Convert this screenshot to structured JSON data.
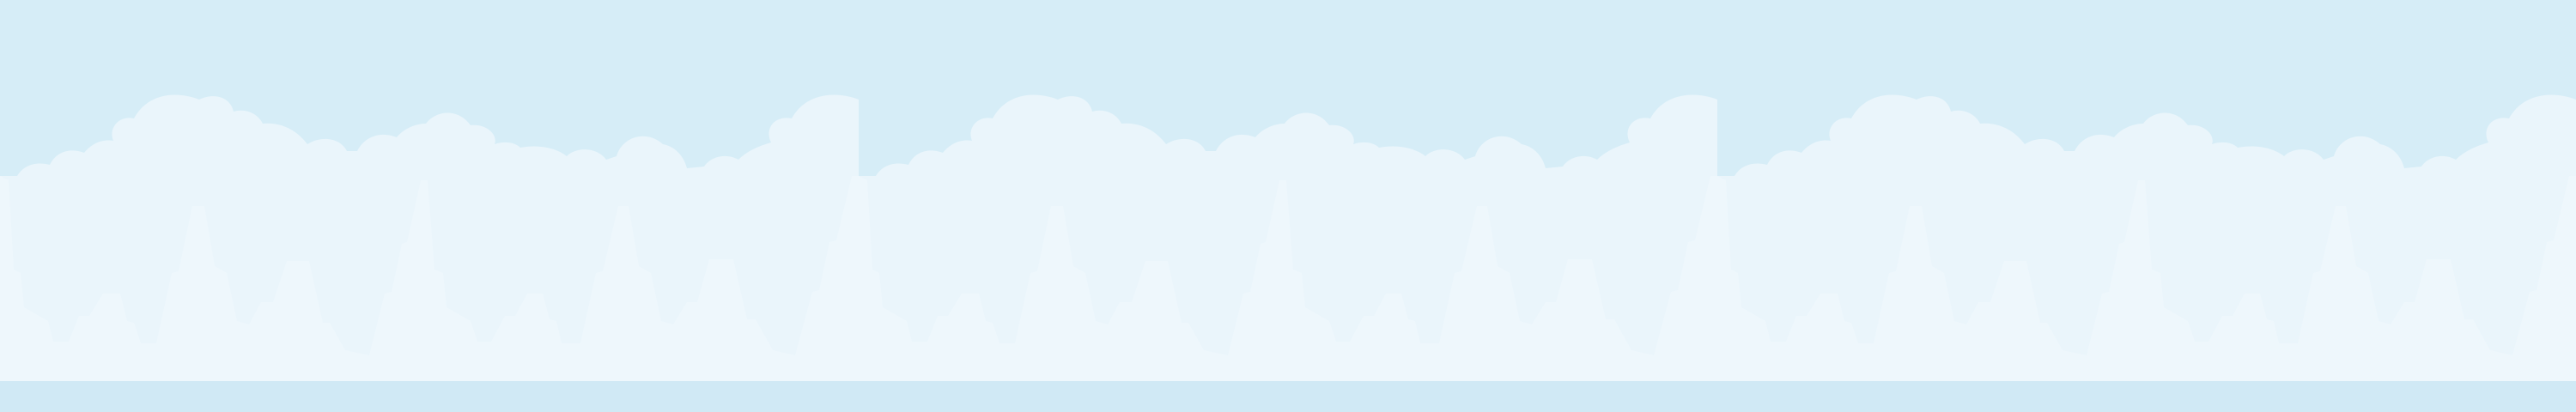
{
  "banner": {
    "background_color": "#d6edf7",
    "cloud_color": "#eaf5fb",
    "building_color": "#eef7fc",
    "ground_color": "#d0e9f5"
  }
}
